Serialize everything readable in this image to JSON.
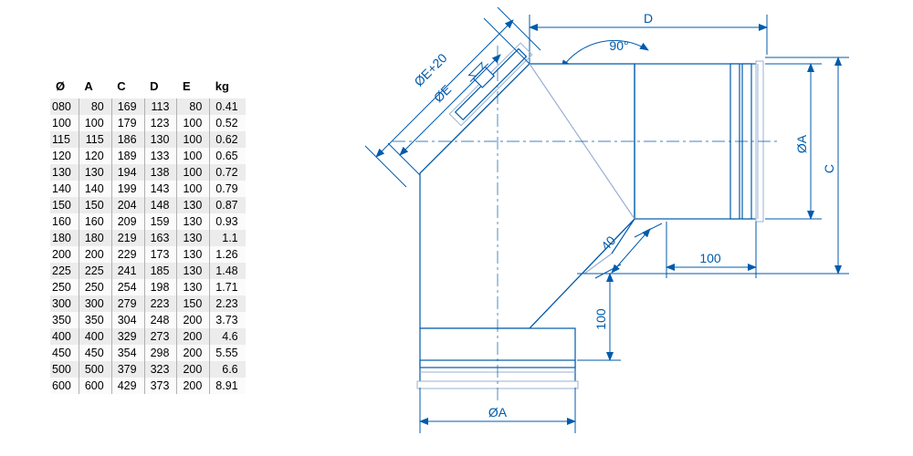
{
  "table": {
    "headers": [
      "Ø",
      "A",
      "C",
      "D",
      "E",
      "kg"
    ],
    "rows": [
      [
        "080",
        "80",
        "169",
        "113",
        "80",
        "0.41"
      ],
      [
        "100",
        "100",
        "179",
        "123",
        "100",
        "0.52"
      ],
      [
        "115",
        "115",
        "186",
        "130",
        "100",
        "0.62"
      ],
      [
        "120",
        "120",
        "189",
        "133",
        "100",
        "0.65"
      ],
      [
        "130",
        "130",
        "194",
        "138",
        "100",
        "0.72"
      ],
      [
        "140",
        "140",
        "199",
        "143",
        "100",
        "0.79"
      ],
      [
        "150",
        "150",
        "204",
        "148",
        "130",
        "0.87"
      ],
      [
        "160",
        "160",
        "209",
        "159",
        "130",
        "0.93"
      ],
      [
        "180",
        "180",
        "219",
        "163",
        "130",
        "1.1"
      ],
      [
        "200",
        "200",
        "229",
        "173",
        "130",
        "1.26"
      ],
      [
        "225",
        "225",
        "241",
        "185",
        "130",
        "1.48"
      ],
      [
        "250",
        "250",
        "254",
        "198",
        "130",
        "1.71"
      ],
      [
        "300",
        "300",
        "279",
        "223",
        "150",
        "2.23"
      ],
      [
        "350",
        "350",
        "304",
        "248",
        "200",
        "3.73"
      ],
      [
        "400",
        "400",
        "329",
        "273",
        "200",
        "4.6"
      ],
      [
        "450",
        "450",
        "354",
        "298",
        "200",
        "5.55"
      ],
      [
        "500",
        "500",
        "379",
        "323",
        "200",
        "6.6"
      ],
      [
        "600",
        "600",
        "429",
        "373",
        "200",
        "8.91"
      ]
    ],
    "col_align": [
      "left",
      "right",
      "right",
      "right",
      "right",
      "right"
    ],
    "header_fontsize": 13,
    "cell_fontsize": 12.5,
    "odd_row_bg": "#ececec",
    "even_row_bg": "#fbfbfb",
    "border_color": "#b0b0b0"
  },
  "drawing": {
    "type": "engineering-diagram",
    "line_color": "#005bab",
    "light_line_color": "#9ab0d0",
    "dim_text_color": "#005bab",
    "dim_fontsize": 14,
    "labels": {
      "angle": "90°",
      "D": "D",
      "phiA_top_right": "ØA",
      "C": "C",
      "len100h": "100",
      "len100v": "100",
      "len40": "40",
      "phiE": "ØE",
      "phiE20": "ØE+20",
      "phiA_bottom": "ØA"
    }
  }
}
